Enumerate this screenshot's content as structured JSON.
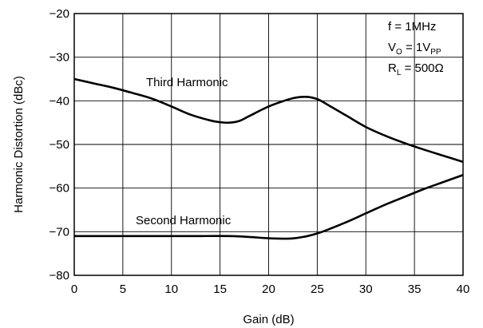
{
  "chart_data": {
    "type": "line",
    "title": "",
    "xlabel": "Gain (dB)",
    "ylabel": "Harmonic Distortion (dBc)",
    "xlim": [
      0,
      40
    ],
    "ylim": [
      -80,
      -20
    ],
    "xticks": [
      0,
      5,
      10,
      15,
      20,
      25,
      30,
      35,
      40
    ],
    "yticks": [
      -20,
      -30,
      -40,
      -50,
      -60,
      -70,
      -80
    ],
    "xtick_labels": [
      "0",
      "5",
      "10",
      "15",
      "20",
      "25",
      "30",
      "35",
      "40"
    ],
    "ytick_labels": [
      "−20",
      "−30",
      "−40",
      "−50",
      "−60",
      "−70",
      "−80"
    ],
    "grid": true,
    "conditions": [
      {
        "main": "f = 1MHz",
        "sub": "",
        "tail": ""
      },
      {
        "main": "V",
        "sub": "O",
        "tail": " = 1V",
        "sub2": "PP"
      },
      {
        "main": "R",
        "sub": "L",
        "tail": " = 500Ω"
      }
    ],
    "series": [
      {
        "name": "Third Harmonic",
        "x": [
          0,
          2,
          4,
          6,
          8,
          10,
          12,
          14,
          15,
          16,
          17,
          18,
          20,
          22,
          23,
          24,
          25,
          26,
          28,
          30,
          32,
          34,
          36,
          38,
          40
        ],
        "y": [
          -35,
          -36,
          -37,
          -38.2,
          -39.5,
          -41.3,
          -43.2,
          -44.5,
          -44.9,
          -45,
          -44.6,
          -43.5,
          -41.3,
          -39.7,
          -39.2,
          -39.1,
          -39.6,
          -40.8,
          -43.4,
          -46,
          -48,
          -49.7,
          -51.2,
          -52.6,
          -54
        ]
      },
      {
        "name": "Second Harmonic",
        "x": [
          0,
          4,
          8,
          12,
          16,
          18,
          20,
          22,
          23,
          24,
          25,
          26,
          28,
          30,
          32,
          34,
          36,
          38,
          40
        ],
        "y": [
          -71,
          -71,
          -71,
          -71,
          -71,
          -71.2,
          -71.5,
          -71.6,
          -71.4,
          -71,
          -70.4,
          -69.6,
          -67.8,
          -65.8,
          -63.8,
          -62,
          -60.2,
          -58.6,
          -57
        ]
      }
    ]
  }
}
